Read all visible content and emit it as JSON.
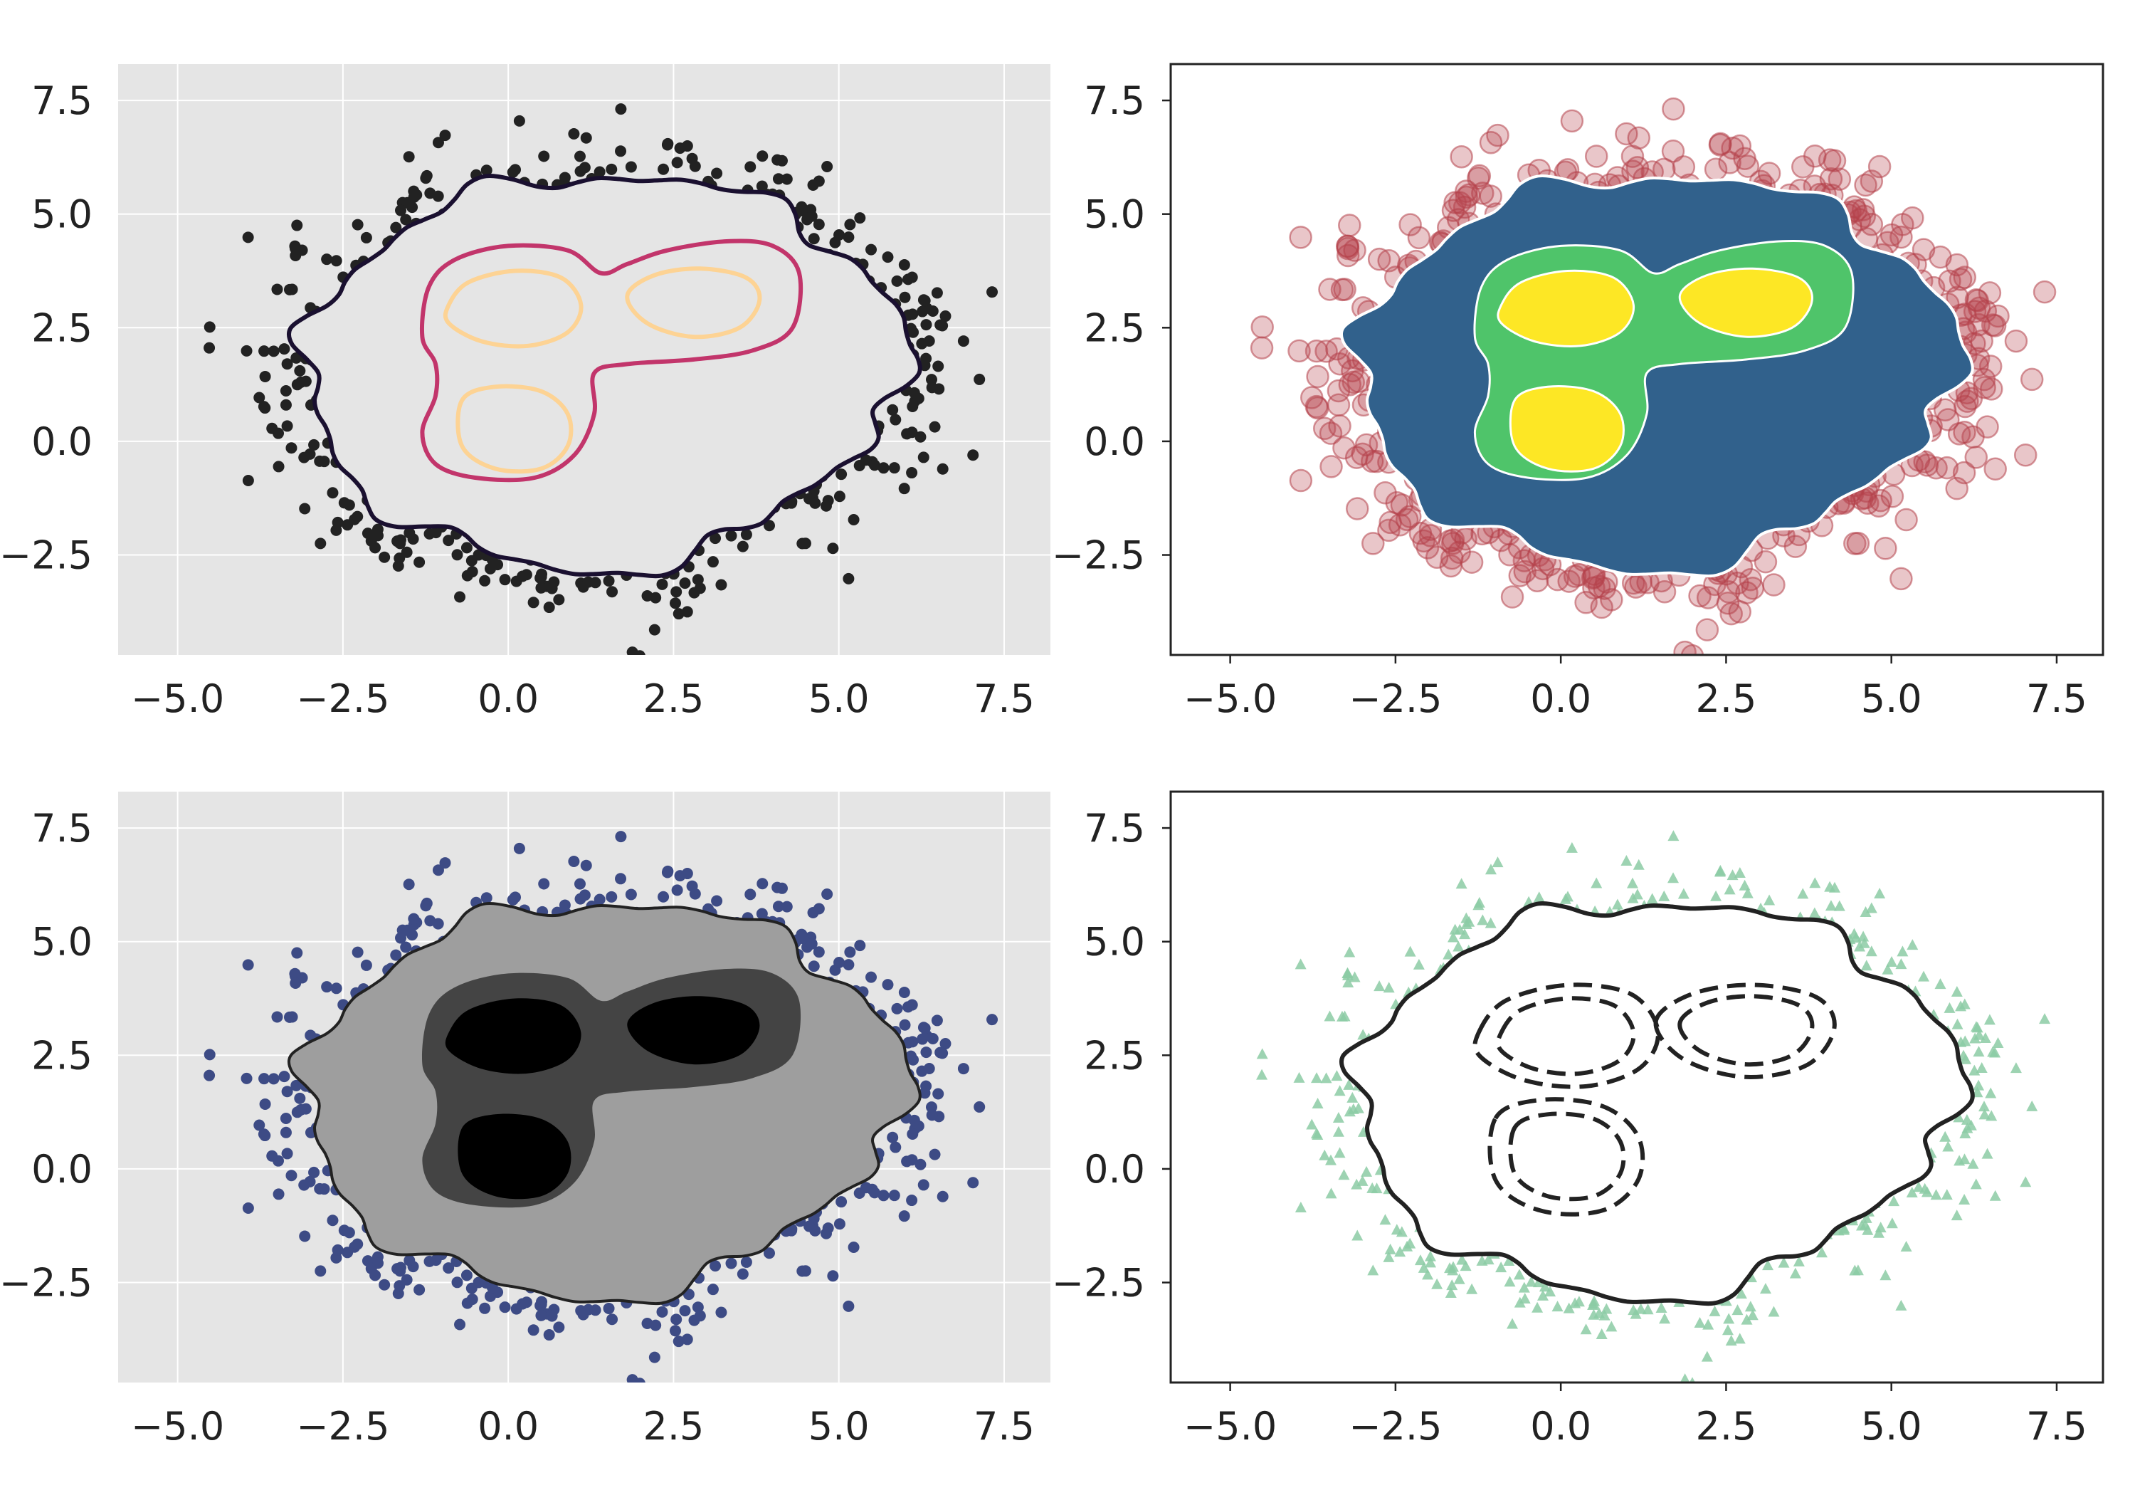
{
  "chart_data": [
    {
      "type": "scatter",
      "panel": "top-left",
      "background": "#e5e5e5",
      "grid": true,
      "frame": false,
      "xlim": [
        -5.9,
        8.2
      ],
      "ylim": [
        -4.7,
        8.3
      ],
      "xticks": [
        "−5.0",
        "−2.5",
        "0.0",
        "2.5",
        "5.0",
        "7.5"
      ],
      "yticks": [
        "−2.5",
        "0.0",
        "2.5",
        "5.0",
        "7.5"
      ],
      "xtick_values": [
        -5,
        -2.5,
        0,
        2.5,
        5,
        7.5
      ],
      "ytick_values": [
        -2.5,
        0,
        2.5,
        5,
        7.5
      ],
      "markers": {
        "shape": "circle",
        "color": "#222222",
        "alpha": 1,
        "size": "small"
      },
      "contours": {
        "mode": "lines",
        "colors": [
          "#1a1030",
          "#c2356b",
          "#fdd394"
        ],
        "linestyle": "solid"
      },
      "title": "",
      "xlabel": "",
      "ylabel": ""
    },
    {
      "type": "scatter",
      "panel": "top-right",
      "background": "#ffffff",
      "grid": false,
      "frame": true,
      "xlim": [
        -5.9,
        8.2
      ],
      "ylim": [
        -4.7,
        8.3
      ],
      "xticks": [
        "−5.0",
        "−2.5",
        "0.0",
        "2.5",
        "5.0",
        "7.5"
      ],
      "yticks": [
        "−2.5",
        "0.0",
        "2.5",
        "5.0",
        "7.5"
      ],
      "xtick_values": [
        -5,
        -2.5,
        0,
        2.5,
        5,
        7.5
      ],
      "ytick_values": [
        -2.5,
        0,
        2.5,
        5,
        7.5
      ],
      "markers": {
        "shape": "circle",
        "color": "#b5414b",
        "alpha": 0.3,
        "size": "large"
      },
      "contours": {
        "mode": "filled",
        "colors": [
          "#31618c",
          "#4fc46a",
          "#fde725"
        ],
        "edgecolor": "#ffffff"
      },
      "title": "",
      "xlabel": "",
      "ylabel": ""
    },
    {
      "type": "scatter",
      "panel": "bottom-left",
      "background": "#e5e5e5",
      "grid": true,
      "frame": false,
      "xlim": [
        -5.9,
        8.2
      ],
      "ylim": [
        -4.7,
        8.3
      ],
      "xticks": [
        "−5.0",
        "−2.5",
        "0.0",
        "2.5",
        "5.0",
        "7.5"
      ],
      "yticks": [
        "−2.5",
        "0.0",
        "2.5",
        "5.0",
        "7.5"
      ],
      "xtick_values": [
        -5,
        -2.5,
        0,
        2.5,
        5,
        7.5
      ],
      "ytick_values": [
        -2.5,
        0,
        2.5,
        5,
        7.5
      ],
      "markers": {
        "shape": "circle",
        "color": "#3d4b85",
        "alpha": 1,
        "size": "small"
      },
      "contours": {
        "mode": "filled",
        "colors": [
          "#9e9e9e",
          "#444444",
          "#000000"
        ],
        "edgecolor": "#222222"
      },
      "title": "",
      "xlabel": "",
      "ylabel": ""
    },
    {
      "type": "scatter",
      "panel": "bottom-right",
      "background": "#ffffff",
      "grid": false,
      "frame": true,
      "xlim": [
        -5.9,
        8.2
      ],
      "ylim": [
        -4.7,
        8.3
      ],
      "xticks": [
        "−5.0",
        "−2.5",
        "0.0",
        "2.5",
        "5.0",
        "7.5"
      ],
      "yticks": [
        "−2.5",
        "0.0",
        "2.5",
        "5.0",
        "7.5"
      ],
      "xtick_values": [
        -5,
        -2.5,
        0,
        2.5,
        5,
        7.5
      ],
      "ytick_values": [
        -2.5,
        0,
        2.5,
        5,
        7.5
      ],
      "markers": {
        "shape": "triangle",
        "color": "#8ccba4",
        "alpha": 0.85,
        "size": "small"
      },
      "contours": {
        "mode": "lines",
        "colors": [
          "#222222",
          "#222222",
          "#222222"
        ],
        "linestyle": "outer solid, inner dashed"
      },
      "title": "",
      "xlabel": "",
      "ylabel": ""
    }
  ]
}
